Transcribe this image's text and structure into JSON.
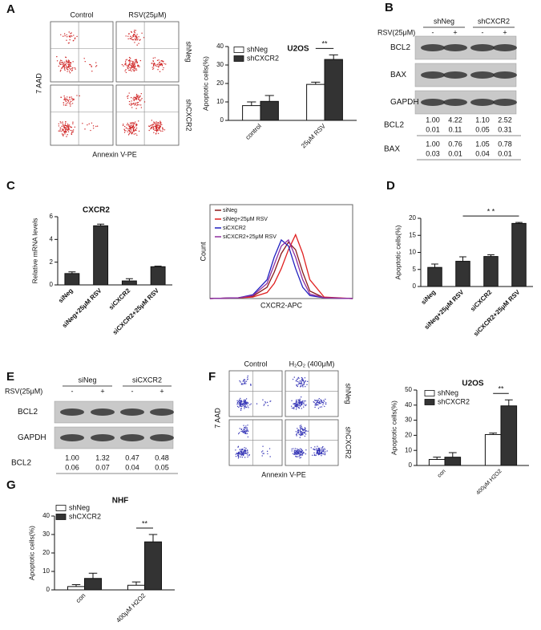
{
  "figure": {
    "panel_labels": [
      "A",
      "B",
      "C",
      "D",
      "E",
      "F",
      "G"
    ],
    "flow_a": {
      "columns": [
        "Control",
        "RSV(25μM)"
      ],
      "rows": [
        "shNeg",
        "shCXCR2"
      ],
      "y_label": "7 AAD",
      "x_label": "Annexin V-PE"
    },
    "blot_b": {
      "groups": [
        "shNeg",
        "shCXCR2"
      ],
      "treatment": "RSV(25μM)",
      "signs": [
        "-",
        "+",
        "-",
        "+"
      ],
      "bands": [
        "BCL2",
        "BAX",
        "GAPDH"
      ],
      "quant": [
        {
          "label": "BCL2",
          "rows": [
            [
              "1.00",
              "4.22",
              "1.10",
              "2.52"
            ],
            [
              "0.01",
              "0.11",
              "0.05",
              "0.31"
            ]
          ]
        },
        {
          "label": "BAX",
          "rows": [
            [
              "1.00",
              "0.76",
              "1.05",
              "0.78"
            ],
            [
              "0.03",
              "0.01",
              "0.04",
              "0.01"
            ]
          ]
        }
      ]
    },
    "blot_e": {
      "groups": [
        "siNeg",
        "siCXCR2"
      ],
      "treatment": "RSV(25μM)",
      "signs": [
        "-",
        "+",
        "-",
        "+"
      ],
      "bands": [
        "BCL2",
        "GAPDH"
      ],
      "quant": [
        {
          "label": "BCL2",
          "rows": [
            [
              "1.00",
              "1.32",
              "0.47",
              "0.48"
            ],
            [
              "0.06",
              "0.07",
              "0.04",
              "0.05"
            ]
          ]
        }
      ]
    },
    "flow_f": {
      "columns": [
        "Control",
        "H₂O₂ (400μM)"
      ],
      "rows": [
        "shNeg",
        "shCXCR2"
      ],
      "y_label": "7 AAD",
      "x_label": "Annexin V-PE"
    }
  },
  "chart_data": [
    {
      "type": "bar",
      "title": "U2OS",
      "y_label": "Apoptotic cells(%)",
      "categories": [
        "control",
        "25μM RSV"
      ],
      "series": [
        {
          "name": "shNeg",
          "color": "#ffffff",
          "values": [
            8,
            19.5
          ],
          "errors": [
            2,
            1.2
          ]
        },
        {
          "name": "shCXCR2",
          "color": "#333333",
          "values": [
            10.3,
            33
          ],
          "errors": [
            3.2,
            2.5
          ]
        }
      ],
      "ylim": [
        0,
        40
      ],
      "yticks": [
        0,
        10,
        20,
        30,
        40
      ],
      "annotation": "**"
    },
    {
      "type": "bar",
      "title": "CXCR2",
      "y_label": "Relative mRNA levels",
      "categories": [
        "siNeg",
        "siNeg+25μM RSV",
        "siCXCR2",
        "siCXCR2+25μM RSV"
      ],
      "values": [
        1,
        5.2,
        0.35,
        1.6
      ],
      "errors": [
        0.15,
        0.15,
        0.2,
        0.05
      ],
      "color": "#333333",
      "ylim": [
        0,
        6
      ],
      "yticks": [
        0,
        2,
        4,
        6
      ]
    },
    {
      "type": "line",
      "y_label": "Count",
      "x_label": "CXCR2-APC",
      "x": [
        0,
        20,
        30,
        40,
        45,
        50,
        55,
        60,
        65,
        70,
        80,
        100
      ],
      "series": [
        {
          "name": "siNeg",
          "color": "#8b1a1a",
          "values": [
            0,
            1,
            3,
            15,
            35,
            60,
            75,
            65,
            35,
            10,
            1,
            0
          ]
        },
        {
          "name": "siNeg+25μM RSV",
          "color": "#e02020",
          "values": [
            0,
            1,
            2,
            8,
            20,
            40,
            65,
            85,
            60,
            25,
            2,
            0
          ]
        },
        {
          "name": "siCXCR2",
          "color": "#2020c0",
          "values": [
            0,
            1,
            5,
            25,
            55,
            78,
            70,
            40,
            15,
            4,
            1,
            0
          ]
        },
        {
          "name": "siCXCR2+25μM RSV",
          "color": "#9030a0",
          "values": [
            0,
            1,
            4,
            20,
            45,
            70,
            78,
            55,
            25,
            6,
            1,
            0
          ]
        }
      ],
      "xlim": [
        0,
        100
      ],
      "ylim": [
        0,
        100
      ]
    },
    {
      "type": "bar",
      "y_label": "Apoptotic cells(%)",
      "categories": [
        "siNeg",
        "siNeg+25μM RSV",
        "siCXCR2",
        "siCXCR2+25μM RSV"
      ],
      "values": [
        5.6,
        7.4,
        8.8,
        18.5
      ],
      "errors": [
        1,
        1.3,
        0.5,
        0.3
      ],
      "color": "#333333",
      "ylim": [
        0,
        20
      ],
      "yticks": [
        0,
        5,
        10,
        15,
        20
      ],
      "annotation": "* *"
    },
    {
      "type": "bar",
      "title": "U2OS",
      "y_label": "Apoptotic cells(%)",
      "categories": [
        "con",
        "400μM H2O2"
      ],
      "series": [
        {
          "name": "shNeg",
          "color": "#ffffff",
          "values": [
            4,
            20.5
          ],
          "errors": [
            1.5,
            1
          ]
        },
        {
          "name": "shCXCR2",
          "color": "#333333",
          "values": [
            5.5,
            39.5
          ],
          "errors": [
            3,
            4
          ]
        }
      ],
      "ylim": [
        0,
        50
      ],
      "yticks": [
        0,
        10,
        20,
        30,
        40,
        50
      ],
      "annotation": "**"
    },
    {
      "type": "bar",
      "title": "NHF",
      "y_label": "Apoptotic cells(%)",
      "categories": [
        "con",
        "400μM H2O2"
      ],
      "series": [
        {
          "name": "shNeg",
          "color": "#ffffff",
          "values": [
            1.8,
            2.5
          ],
          "errors": [
            1,
            1.8
          ]
        },
        {
          "name": "shCXCR2",
          "color": "#333333",
          "values": [
            6.2,
            26
          ],
          "errors": [
            2.8,
            4
          ]
        }
      ],
      "ylim": [
        0,
        40
      ],
      "yticks": [
        0,
        10,
        20,
        30,
        40
      ],
      "annotation": "**"
    }
  ]
}
